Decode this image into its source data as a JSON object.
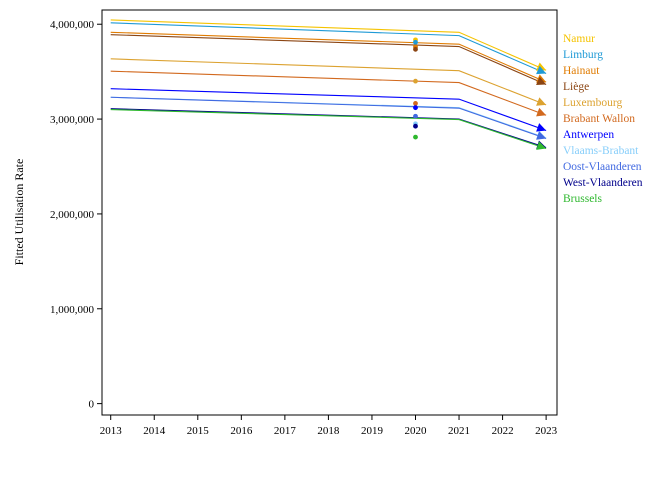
{
  "chart_data": {
    "type": "line",
    "ylabel": "Fitted Utilisation Rate",
    "xlabel": "",
    "x_ticks": [
      "2013",
      "2014",
      "2015",
      "2016",
      "2017",
      "2018",
      "2019",
      "2020",
      "2021",
      "2022",
      "2023"
    ],
    "y_ticks": [
      "0",
      "1,000,000",
      "2,000,000",
      "3,000,000",
      "4,000,000"
    ],
    "xlim": [
      2012.8,
      2023.25
    ],
    "ylim": [
      -120000,
      4150000
    ],
    "grid": false,
    "legend_position": "right",
    "x": [
      2013,
      2021,
      2023
    ],
    "series": [
      {
        "name": "Namur",
        "color": "#f5c300",
        "values": [
          4045000,
          3915000,
          3515000
        ],
        "observed": 3835000
      },
      {
        "name": "Limburg",
        "color": "#1f9ad6",
        "values": [
          4015000,
          3880000,
          3480000
        ],
        "observed": 3810000
      },
      {
        "name": "Hainaut",
        "color": "#e07b00",
        "values": [
          3915000,
          3790000,
          3390000
        ],
        "observed": 3760000
      },
      {
        "name": "Liège",
        "color": "#8b4513",
        "values": [
          3890000,
          3765000,
          3365000
        ],
        "observed": 3735000
      },
      {
        "name": "Luxembourg",
        "color": "#dca230",
        "values": [
          3635000,
          3510000,
          3150000
        ],
        "observed": 3400000
      },
      {
        "name": "Brabant Wallon",
        "color": "#d2691e",
        "values": [
          3505000,
          3385000,
          3040000
        ],
        "observed": 3165000
      },
      {
        "name": "Antwerpen",
        "color": "#0000ff",
        "values": [
          3320000,
          3210000,
          2880000
        ],
        "observed": 3120000
      },
      {
        "name": "Vlaams-Brabant",
        "color": "#87cefa",
        "values": [
          3230000,
          3120000,
          2800000
        ],
        "observed": 2950000
      },
      {
        "name": "Oost-Vlaanderen",
        "color": "#4169e1",
        "values": [
          3230000,
          3115000,
          2795000
        ],
        "observed": 3030000
      },
      {
        "name": "West-Vlaanderen",
        "color": "#00008b",
        "values": [
          3110000,
          3000000,
          2700000
        ],
        "observed": 2925000
      },
      {
        "name": "Brussels",
        "color": "#2eb82e",
        "values": [
          3100000,
          2995000,
          2690000
        ],
        "observed": 2810000
      }
    ],
    "observed_year": 2020
  }
}
